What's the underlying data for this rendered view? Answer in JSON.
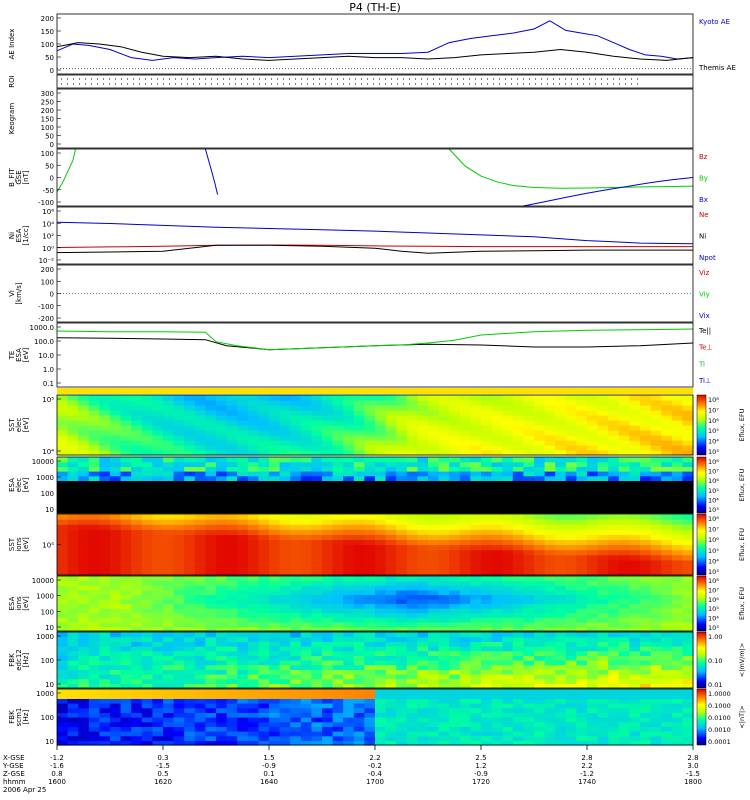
{
  "title": "P4 (TH-E)",
  "colors": {
    "kyoto": "#0000cc",
    "themis": "#000000",
    "red": "#cc0000",
    "green": "#00cc00",
    "blue": "#0000cc",
    "black": "#000000"
  },
  "chart_data": [
    {
      "type": "line",
      "id": "ae",
      "ylabel": "AE Index",
      "yticks": [
        "200",
        "150",
        "100",
        "50",
        "0"
      ],
      "ylim": [
        -20,
        200
      ],
      "series": [
        {
          "name": "Kyoto AE",
          "color": "blue",
          "x": [
            1600,
            1603,
            1606,
            1610,
            1614,
            1618,
            1622,
            1626,
            1630,
            1635,
            1640,
            1645,
            1650,
            1655,
            1700,
            1705,
            1710,
            1714,
            1718,
            1722,
            1726,
            1730,
            1733,
            1736,
            1739,
            1742,
            1745,
            1748,
            1751,
            1754,
            1757,
            1800
          ],
          "y": [
            65,
            90,
            85,
            70,
            40,
            30,
            40,
            35,
            40,
            45,
            40,
            45,
            50,
            55,
            55,
            55,
            60,
            95,
            110,
            120,
            130,
            145,
            175,
            140,
            130,
            120,
            95,
            70,
            50,
            45,
            35,
            40
          ]
        },
        {
          "name": "Themis AE",
          "color": "black",
          "x": [
            1600,
            1604,
            1608,
            1612,
            1616,
            1620,
            1625,
            1630,
            1635,
            1640,
            1645,
            1650,
            1655,
            1700,
            1705,
            1710,
            1715,
            1720,
            1725,
            1730,
            1735,
            1740,
            1745,
            1750,
            1755,
            1800
          ],
          "y": [
            80,
            95,
            90,
            80,
            60,
            45,
            40,
            45,
            35,
            30,
            35,
            40,
            45,
            40,
            40,
            35,
            40,
            50,
            55,
            60,
            70,
            60,
            45,
            35,
            30,
            40
          ]
        }
      ]
    },
    {
      "type": "line",
      "id": "roi",
      "ylabel": "ROI"
    },
    {
      "type": "line",
      "id": "keogram",
      "ylabel": "Keogram",
      "yticks": [
        "300",
        "250",
        "200",
        "150",
        "100",
        "50",
        "0"
      ]
    },
    {
      "type": "line",
      "id": "bfit",
      "ylabel": [
        "B_FIT",
        "GSE",
        "[nT]"
      ],
      "yticks": [
        "100",
        "50",
        "0",
        "-50",
        "-100"
      ],
      "ylim": [
        -100,
        100
      ],
      "series": [
        {
          "name": "Bz",
          "color": "red",
          "x": [],
          "y": []
        },
        {
          "name": "By",
          "color": "green",
          "x": [
            1600,
            1601,
            1602,
            1603,
            1603.5,
            null,
            1714,
            1717,
            1720,
            1723,
            1726,
            1730,
            1735,
            1740,
            1745,
            1750,
            1755,
            1800
          ],
          "y": [
            -50,
            -20,
            20,
            60,
            100,
            null,
            100,
            40,
            5,
            -15,
            -28,
            -35,
            -38,
            -37,
            -35,
            -33,
            -32,
            -30
          ]
        },
        {
          "name": "Bx",
          "color": "blue",
          "x": [
            1628,
            1628.6,
            1629.2,
            1629.8,
            1630.3,
            null,
            1728,
            1732,
            1736,
            1740,
            1744,
            1748,
            1752,
            1756,
            1800
          ],
          "y": [
            100,
            60,
            20,
            -20,
            -60,
            null,
            -100,
            -85,
            -70,
            -55,
            -42,
            -30,
            -18,
            -8,
            0
          ]
        }
      ]
    },
    {
      "type": "line",
      "id": "density",
      "ylabel": [
        "Ni",
        "ESA",
        "[1/cc]"
      ],
      "yticks": [
        "10⁶",
        "10⁴",
        "10²",
        "10⁰",
        "10⁻²"
      ],
      "ylim": [
        -2.5,
        6.5
      ],
      "log": true,
      "series": [
        {
          "name": "Ne",
          "color": "red",
          "x": [
            1600,
            1610,
            1620,
            1630,
            1640,
            1650,
            1700,
            1710,
            1720,
            1730,
            1740,
            1750,
            1800
          ],
          "y": [
            0.1,
            0.2,
            0.3,
            0.45,
            0.5,
            0.45,
            0.35,
            0.3,
            0.25,
            0.25,
            0.25,
            0.25,
            0.25
          ]
        },
        {
          "name": "Ni",
          "color": "black",
          "x": [
            1600,
            1610,
            1620,
            1630,
            1640,
            1650,
            1700,
            1705,
            1710,
            1720,
            1730,
            1740,
            1750,
            1800
          ],
          "y": [
            -0.7,
            -0.6,
            -0.5,
            0.45,
            0.45,
            0.3,
            0.0,
            -0.5,
            -0.8,
            -0.5,
            -0.4,
            -0.3,
            -0.3,
            -0.3
          ]
        },
        {
          "name": "Npot",
          "color": "blue",
          "x": [
            1600,
            1610,
            1620,
            1630,
            1640,
            1650,
            1700,
            1710,
            1720,
            1730,
            1740,
            1745,
            1750,
            1800
          ],
          "y": [
            4.1,
            3.9,
            3.6,
            3.3,
            3.1,
            2.9,
            2.7,
            2.4,
            2.1,
            1.8,
            1.2,
            1.0,
            0.8,
            0.7
          ]
        }
      ]
    },
    {
      "type": "line",
      "id": "velocity",
      "ylabel": [
        "Vi",
        "[km/s]"
      ],
      "yticks": [
        "200",
        "100",
        "0",
        "-100",
        "-200"
      ],
      "ylim": [
        -250,
        250
      ],
      "series": [
        {
          "name": "Viz",
          "color": "red",
          "x": [],
          "y": []
        },
        {
          "name": "Viy",
          "color": "green",
          "x": [],
          "y": []
        },
        {
          "name": "Vix",
          "color": "blue",
          "x": [],
          "y": []
        }
      ]
    },
    {
      "type": "line",
      "id": "temperature",
      "ylabel": [
        "TE",
        "ESA",
        "[eV]"
      ],
      "yticks": [
        "1000.0",
        "100.0",
        "10.0",
        "1.0",
        "0.1"
      ],
      "ylim": [
        -1.2,
        3.6
      ],
      "log": true,
      "series": [
        {
          "name": "Te||",
          "color": "black",
          "x": [
            1600,
            1610,
            1620,
            1628,
            1632,
            1640,
            1650,
            1700,
            1710,
            1720,
            1730,
            1740,
            1750,
            1800
          ],
          "y": [
            2.5,
            2.45,
            2.4,
            2.35,
            1.9,
            1.6,
            1.75,
            1.9,
            2.0,
            1.95,
            1.8,
            1.8,
            1.9,
            2.1
          ]
        },
        {
          "name": "Te⊥",
          "color": "red",
          "x": [],
          "y": []
        },
        {
          "name": "Ti",
          "color": "green",
          "x": [
            1600,
            1610,
            1620,
            1628,
            1630,
            1634,
            1640,
            1650,
            1700,
            1705,
            1710,
            1715,
            1720,
            1730,
            1740,
            1750,
            1800
          ],
          "y": [
            3.0,
            2.95,
            2.95,
            2.9,
            2.2,
            1.9,
            1.6,
            1.75,
            1.9,
            1.95,
            2.1,
            2.3,
            2.7,
            2.95,
            3.05,
            3.1,
            3.15
          ]
        },
        {
          "name": "Ti⊥",
          "color": "blue",
          "x": [],
          "y": []
        }
      ]
    },
    {
      "type": "heatmap",
      "id": "sst_ele",
      "ylabel": [
        "SST",
        "elec",
        "[eV]"
      ],
      "yticks": [
        "10⁵",
        "10⁴"
      ],
      "colorbar": {
        "label": "Eflux, EFU",
        "ticks": [
          "10⁸",
          "10⁷",
          "10⁶",
          "10⁵",
          "10⁴",
          "10³"
        ]
      }
    },
    {
      "type": "heatmap",
      "id": "esa_ele",
      "ylabel": [
        "ESA",
        "elec",
        "[eV]"
      ],
      "yticks": [
        "10000",
        "1000",
        "100",
        "10"
      ],
      "colorbar": {
        "label": "Eflux, EFU",
        "ticks": [
          "10⁸",
          "10⁷",
          "10⁶",
          "10⁵",
          "10⁴",
          "10³"
        ]
      }
    },
    {
      "type": "heatmap",
      "id": "sst_ion",
      "ylabel": [
        "SST",
        "ions",
        "[eV]"
      ],
      "yticks": [
        "10⁵"
      ],
      "colorbar": {
        "label": "Eflux, EFU",
        "ticks": [
          "10⁸",
          "10⁷",
          "10⁶",
          "10⁵",
          "10⁴",
          "10³"
        ]
      }
    },
    {
      "type": "heatmap",
      "id": "esa_ion",
      "ylabel": [
        "ESA",
        "ions",
        "[eV]"
      ],
      "yticks": [
        "10000",
        "1000",
        "100",
        "10"
      ],
      "colorbar": {
        "label": "Eflux, EFU",
        "ticks": [
          "10⁸",
          "10⁷",
          "10⁶",
          "10⁵",
          "10⁴",
          "10³"
        ]
      }
    },
    {
      "type": "heatmap",
      "id": "fbk_e",
      "ylabel": [
        "FBK",
        "edc12",
        "[Hz]"
      ],
      "yticks": [
        "1000",
        "100",
        "10"
      ],
      "colorbar": {
        "label": "<|mV/m|>",
        "ticks": [
          "1.00",
          "0.10",
          "0.01"
        ]
      }
    },
    {
      "type": "heatmap",
      "id": "fbk_b",
      "ylabel": [
        "FBK",
        "scm1",
        "[Hz]"
      ],
      "yticks": [
        "1000",
        "100",
        "10"
      ],
      "colorbar": {
        "label": "<|nT|>",
        "ticks": [
          "1.0000",
          "0.1000",
          "0.0100",
          "0.0010",
          "0.0001"
        ]
      }
    }
  ],
  "xaxis": {
    "rows": [
      {
        "label": "X-GSE",
        "values": [
          "-1.2",
          "0.3",
          "1.5",
          "2.2",
          "2.5",
          "2.8",
          "2.8"
        ]
      },
      {
        "label": "Y-GSE",
        "values": [
          "-1.6",
          "-1.5",
          "-0.9",
          "-0.2",
          "1.2",
          "2.2",
          "3.0"
        ]
      },
      {
        "label": "Z-GSE",
        "values": [
          "0.8",
          "0.5",
          "0.1",
          "-0.4",
          "-0.9",
          "-1.2",
          "-1.5"
        ]
      },
      {
        "label": "hhmm",
        "values": [
          "1600",
          "1620",
          "1640",
          "1700",
          "1720",
          "1740",
          "1800"
        ]
      }
    ],
    "date": "2006 Apr 25"
  }
}
